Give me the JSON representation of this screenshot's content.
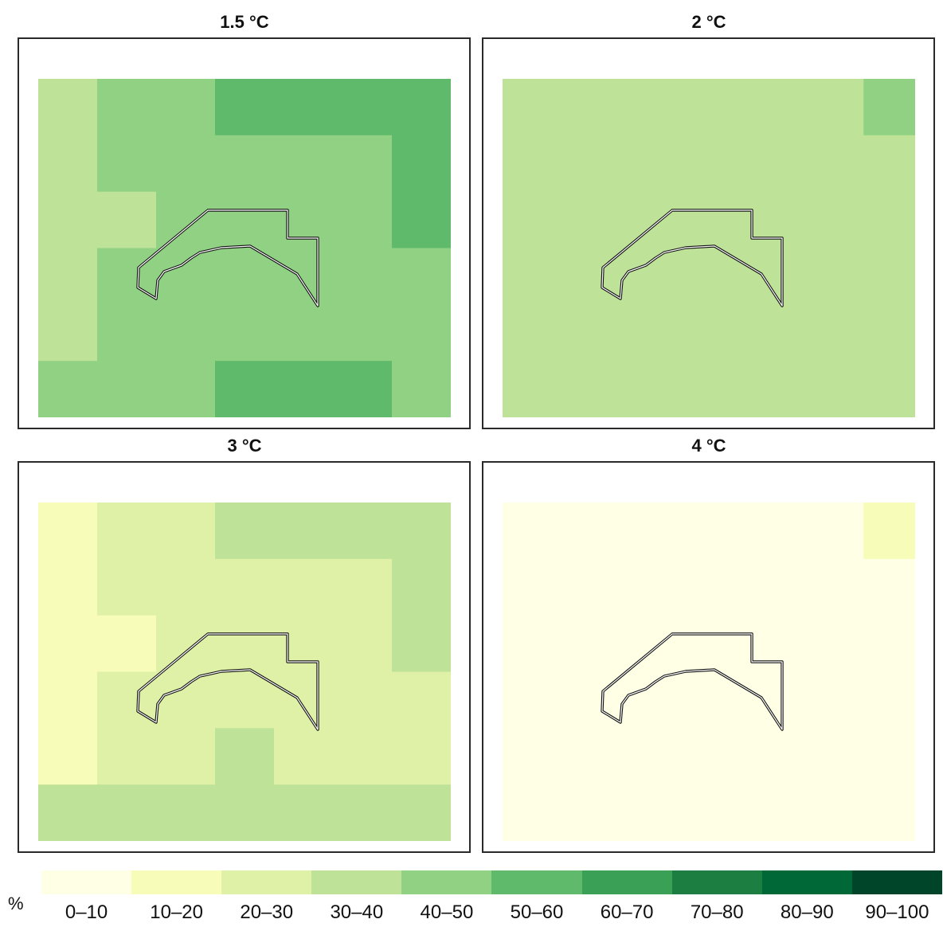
{
  "panels": [
    {
      "title": "1.5 °C",
      "cells": [
        [
          3,
          4,
          4,
          5,
          5,
          5,
          5
        ],
        [
          3,
          4,
          4,
          4,
          4,
          4,
          5
        ],
        [
          3,
          3,
          4,
          4,
          4,
          4,
          5
        ],
        [
          3,
          4,
          4,
          4,
          4,
          4,
          4
        ],
        [
          3,
          4,
          4,
          4,
          4,
          4,
          4
        ],
        [
          4,
          4,
          4,
          5,
          5,
          5,
          4
        ]
      ]
    },
    {
      "title": "2 °C",
      "cells": [
        [
          3,
          3,
          3,
          3,
          3,
          3,
          3,
          4
        ],
        [
          3,
          3,
          3,
          3,
          3,
          3,
          3,
          3
        ],
        [
          3,
          3,
          3,
          3,
          3,
          3,
          3,
          3
        ],
        [
          3,
          3,
          3,
          3,
          3,
          3,
          3,
          3
        ],
        [
          3,
          3,
          3,
          3,
          3,
          3,
          3,
          3
        ],
        [
          3,
          3,
          3,
          3,
          3,
          3,
          3,
          3
        ]
      ]
    },
    {
      "title": "3 °C",
      "cells": [
        [
          1,
          2,
          2,
          3,
          3,
          3,
          3
        ],
        [
          1,
          2,
          2,
          2,
          2,
          2,
          3
        ],
        [
          1,
          1,
          2,
          2,
          2,
          2,
          3
        ],
        [
          1,
          2,
          2,
          2,
          2,
          2,
          2
        ],
        [
          1,
          2,
          2,
          3,
          2,
          2,
          2
        ],
        [
          3,
          3,
          3,
          3,
          3,
          3,
          3
        ]
      ]
    },
    {
      "title": "4 °C",
      "cells": [
        [
          0,
          0,
          0,
          0,
          0,
          0,
          0,
          1
        ],
        [
          0,
          0,
          0,
          0,
          0,
          0,
          0,
          0
        ],
        [
          0,
          0,
          0,
          0,
          0,
          0,
          0,
          0
        ],
        [
          0,
          0,
          0,
          0,
          0,
          0,
          0,
          0
        ],
        [
          0,
          0,
          0,
          0,
          0,
          0,
          0,
          0
        ],
        [
          0,
          0,
          0,
          0,
          0,
          0,
          0,
          0
        ]
      ]
    }
  ],
  "legend": {
    "unit": "%",
    "classes": [
      {
        "label": "0–10",
        "color": "#ffffe5"
      },
      {
        "label": "10–20",
        "color": "#f7fcb9"
      },
      {
        "label": "20–30",
        "color": "#dff1a6"
      },
      {
        "label": "30–40",
        "color": "#bee298"
      },
      {
        "label": "40–50",
        "color": "#90d183"
      },
      {
        "label": "50–60",
        "color": "#5fba6b"
      },
      {
        "label": "60–70",
        "color": "#39a055"
      },
      {
        "label": "70–80",
        "color": "#1c7f41"
      },
      {
        "label": "80–90",
        "color": "#006837"
      },
      {
        "label": "90–100",
        "color": "#00452a"
      }
    ]
  }
}
